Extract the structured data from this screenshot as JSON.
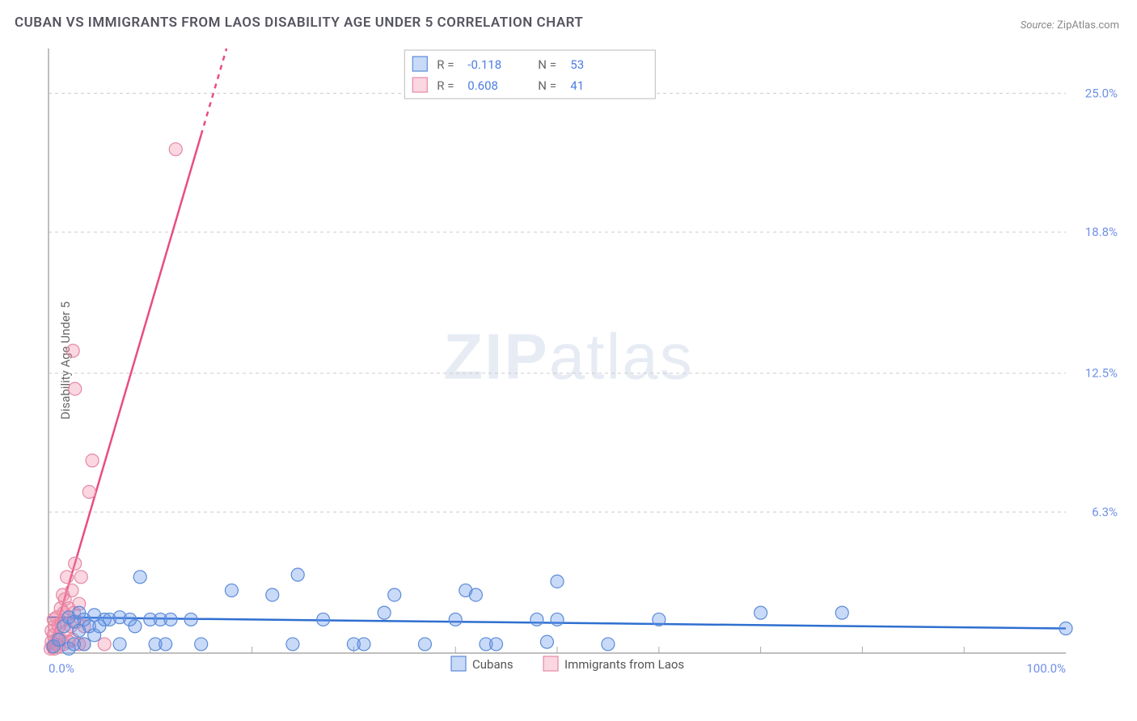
{
  "title": "CUBAN VS IMMIGRANTS FROM LAOS DISABILITY AGE UNDER 5 CORRELATION CHART",
  "source_label": "Source:",
  "source_value": "ZipAtlas.com",
  "y_axis_label": "Disability Age Under 5",
  "watermark_a": "ZIP",
  "watermark_b": "atlas",
  "chart": {
    "type": "scatter",
    "background_color": "#ffffff",
    "grid_color": "#cccccc",
    "axis_color": "#aaaaaa",
    "tick_color": "#6f8fe8",
    "xlim": [
      0,
      100
    ],
    "ylim": [
      0,
      27
    ],
    "x_ticks": [
      {
        "v": 0,
        "label": "0.0%"
      },
      {
        "v": 100,
        "label": "100.0%"
      }
    ],
    "x_minor_ticks": [
      10,
      20,
      30,
      40,
      50,
      60,
      70,
      80,
      90
    ],
    "y_ticks": [
      {
        "v": 6.3,
        "label": "6.3%"
      },
      {
        "v": 12.5,
        "label": "12.5%"
      },
      {
        "v": 18.8,
        "label": "18.8%"
      },
      {
        "v": 25.0,
        "label": "25.0%"
      }
    ],
    "marker_radius": 8,
    "series": [
      {
        "name": "Cubans",
        "color_fill": "rgba(100,150,235,0.35)",
        "color_stroke": "#5a8ad8",
        "r": -0.118,
        "n": 53,
        "trend": {
          "x0": 0,
          "y0": 1.6,
          "x1": 100,
          "y1": 1.1,
          "color": "#2f6fd0"
        },
        "points": [
          [
            0.5,
            0.3
          ],
          [
            1,
            0.6
          ],
          [
            1.5,
            1.2
          ],
          [
            2,
            0.2
          ],
          [
            2,
            1.6
          ],
          [
            2.5,
            0.4
          ],
          [
            2.5,
            1.4
          ],
          [
            3,
            1.0
          ],
          [
            3,
            1.8
          ],
          [
            3.5,
            0.4
          ],
          [
            3.5,
            1.5
          ],
          [
            4,
            1.2
          ],
          [
            4.5,
            0.8
          ],
          [
            4.5,
            1.7
          ],
          [
            5,
            1.2
          ],
          [
            5.5,
            1.5
          ],
          [
            6,
            1.5
          ],
          [
            7,
            1.6
          ],
          [
            7,
            0.4
          ],
          [
            8,
            1.5
          ],
          [
            8.5,
            1.2
          ],
          [
            9,
            3.4
          ],
          [
            10,
            1.5
          ],
          [
            10.5,
            0.4
          ],
          [
            11,
            1.5
          ],
          [
            11.5,
            0.4
          ],
          [
            12,
            1.5
          ],
          [
            14,
            1.5
          ],
          [
            15,
            0.4
          ],
          [
            18,
            2.8
          ],
          [
            22,
            2.6
          ],
          [
            24,
            0.4
          ],
          [
            24.5,
            3.5
          ],
          [
            27,
            1.5
          ],
          [
            30,
            0.4
          ],
          [
            31,
            0.4
          ],
          [
            33,
            1.8
          ],
          [
            34,
            2.6
          ],
          [
            37,
            0.4
          ],
          [
            40,
            1.5
          ],
          [
            41,
            2.8
          ],
          [
            42,
            2.6
          ],
          [
            43,
            0.4
          ],
          [
            44,
            0.4
          ],
          [
            48,
            1.5
          ],
          [
            49,
            0.5
          ],
          [
            50,
            3.2
          ],
          [
            50,
            1.5
          ],
          [
            55,
            0.4
          ],
          [
            60,
            1.5
          ],
          [
            70,
            1.8
          ],
          [
            78,
            1.8
          ],
          [
            100,
            1.1
          ]
        ]
      },
      {
        "name": "Immigrants from Laos",
        "color_fill": "rgba(240,140,170,0.35)",
        "color_stroke": "#e688a5",
        "r": 0.608,
        "n": 41,
        "trend": {
          "x0": 0,
          "y0": 0,
          "x1": 17.5,
          "y1": 27,
          "solid_until_x": 15,
          "color": "#e94d80"
        },
        "points": [
          [
            0.2,
            0.2
          ],
          [
            0.3,
            0.5
          ],
          [
            0.3,
            1.0
          ],
          [
            0.4,
            0.3
          ],
          [
            0.5,
            0.8
          ],
          [
            0.5,
            1.5
          ],
          [
            0.6,
            0.2
          ],
          [
            0.6,
            1.2
          ],
          [
            0.7,
            0.4
          ],
          [
            0.8,
            1.6
          ],
          [
            0.8,
            0.6
          ],
          [
            1,
            0.3
          ],
          [
            1,
            1.2
          ],
          [
            1.2,
            2.0
          ],
          [
            1.2,
            0.6
          ],
          [
            1.3,
            1.4
          ],
          [
            1.4,
            2.6
          ],
          [
            1.5,
            0.4
          ],
          [
            1.5,
            1.8
          ],
          [
            1.6,
            2.4
          ],
          [
            1.8,
            1.0
          ],
          [
            1.8,
            3.4
          ],
          [
            2,
            0.5
          ],
          [
            2,
            2.0
          ],
          [
            2.2,
            1.2
          ],
          [
            2.3,
            2.8
          ],
          [
            2.4,
            0.6
          ],
          [
            2.5,
            1.8
          ],
          [
            2.6,
            4.0
          ],
          [
            2.8,
            1.4
          ],
          [
            3,
            0.4
          ],
          [
            3,
            2.2
          ],
          [
            3.2,
            3.4
          ],
          [
            3.5,
            1.2
          ],
          [
            3.5,
            0.4
          ],
          [
            4,
            7.2
          ],
          [
            4.3,
            8.6
          ],
          [
            2.6,
            11.8
          ],
          [
            2.4,
            13.5
          ],
          [
            12.5,
            22.5
          ],
          [
            5.5,
            0.4
          ]
        ]
      }
    ],
    "top_legend": {
      "box_stroke": "#bbbbbb",
      "rows": [
        {
          "swatch_fill": "rgba(100,150,235,0.35)",
          "swatch_stroke": "#5a8ad8",
          "r": "-0.118",
          "n": "53"
        },
        {
          "swatch_fill": "rgba(240,140,170,0.35)",
          "swatch_stroke": "#e688a5",
          "r": "0.608",
          "n": "41"
        }
      ]
    },
    "bottom_legend": {
      "items": [
        {
          "swatch_fill": "rgba(100,150,235,0.35)",
          "swatch_stroke": "#5a8ad8",
          "label": "Cubans"
        },
        {
          "swatch_fill": "rgba(240,140,170,0.35)",
          "swatch_stroke": "#e688a5",
          "label": "Immigrants from Laos"
        }
      ]
    }
  }
}
